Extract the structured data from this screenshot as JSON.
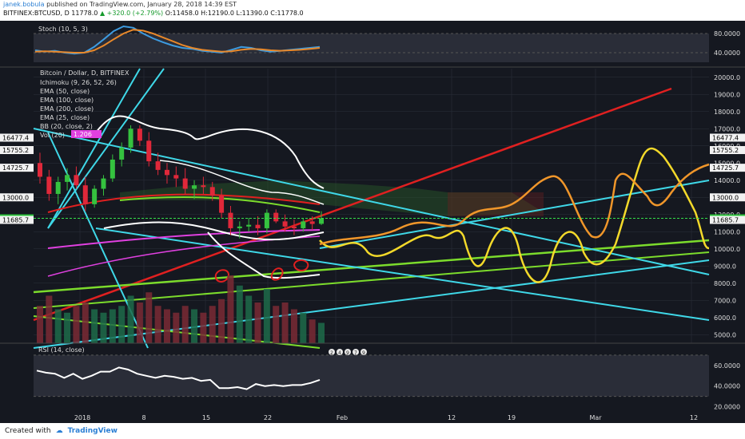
{
  "header": {
    "author": "janek.bobula",
    "published": "published on TradingView.com, January 28, 2018 14:39 EST",
    "symbol": "BITFINEX:BTCUSD, D",
    "last": "11778.0",
    "change": "▲ +320.0 (+2.79%)",
    "ohlc": "O:11458.0 H:12190.0 L:11390.0 C:11778.0"
  },
  "footer": {
    "created_with": "Created with",
    "brand": "TradingView"
  },
  "colors": {
    "bg": "#151820",
    "grid": "#2a2f3a",
    "stoch_k": "#3d9be0",
    "stoch_d": "#e8882a",
    "rsi": "#ffffff",
    "cyan": "#3fd8e8",
    "red": "#e02020",
    "green": "#7cdc2c",
    "yellow": "#f3d92a",
    "orange": "#f0962a",
    "magenta": "#e040e0"
  },
  "chart_data": [
    {
      "type": "line",
      "pane": "stoch",
      "title": "Stoch (10, 5, 3)",
      "ylim": [
        20,
        100
      ],
      "yticks": [
        "80.0000",
        "40.0000"
      ],
      "x": [
        0,
        1,
        2,
        3,
        4,
        5,
        6,
        7,
        8,
        9,
        10,
        11,
        12,
        13,
        14,
        15,
        16,
        17,
        18,
        19,
        20,
        21,
        22,
        23,
        24,
        25,
        26,
        27,
        28,
        29
      ],
      "series": [
        {
          "values": [
            45,
            42,
            44,
            40,
            38,
            40,
            52,
            68,
            85,
            95,
            92,
            80,
            70,
            62,
            55,
            50,
            48,
            44,
            42,
            40,
            46,
            52,
            50,
            45,
            42,
            44,
            46,
            48,
            50,
            52
          ]
        },
        {
          "values": [
            42,
            43,
            42,
            41,
            40,
            40,
            45,
            55,
            68,
            80,
            88,
            86,
            80,
            72,
            64,
            56,
            50,
            46,
            44,
            42,
            43,
            46,
            48,
            47,
            45,
            44,
            45,
            46,
            48,
            50
          ]
        }
      ]
    },
    {
      "type": "candlestick",
      "pane": "price",
      "title": "Bitcoin / Dollar, D, BITFINEX",
      "ylim": [
        4500,
        20500
      ],
      "yticks": [
        "20000.0",
        "19000.0",
        "18000.0",
        "17000.0",
        "16000.0",
        "15000.0",
        "14000.0",
        "13000.0",
        "12000.0",
        "11000.0",
        "10000.0",
        "9000.0",
        "8000.0",
        "7000.0",
        "6000.0",
        "5000.0"
      ],
      "price_labels": [
        "16477.4",
        "15755.2",
        "14725.7",
        "13000.0",
        "11778.0",
        "11685.7"
      ],
      "xticks": [
        "2018",
        "8",
        "15",
        "22",
        "Feb",
        "12",
        "19",
        "Mar",
        "12"
      ],
      "legend": [
        "Ichimoku (9, 26, 52, 26)",
        "EMA (50, close)",
        "EMA (100, close)",
        "EMA (200, close)",
        "EMA (25, close)",
        "BB (20, close, 2)",
        "Vol (20)"
      ],
      "vol_label": "1.206",
      "last_price": 11778,
      "ohlc": [
        [
          15000,
          15600,
          13800,
          14200
        ],
        [
          14200,
          14600,
          12800,
          13200
        ],
        [
          13200,
          14200,
          12600,
          13900
        ],
        [
          13900,
          14700,
          13400,
          14300
        ],
        [
          14300,
          14800,
          13500,
          13700
        ],
        [
          13700,
          14200,
          12200,
          12600
        ],
        [
          12600,
          13700,
          12400,
          13500
        ],
        [
          13500,
          14300,
          13100,
          14100
        ],
        [
          14100,
          15500,
          13900,
          15200
        ],
        [
          15200,
          16200,
          14800,
          15900
        ],
        [
          15900,
          17200,
          15600,
          17000
        ],
        [
          17000,
          17200,
          16000,
          16300
        ],
        [
          16300,
          16800,
          14800,
          15100
        ],
        [
          15100,
          15600,
          14300,
          14600
        ],
        [
          14600,
          15000,
          13800,
          14300
        ],
        [
          14300,
          14800,
          13600,
          14100
        ],
        [
          14100,
          14700,
          13200,
          13500
        ],
        [
          13500,
          14000,
          12900,
          13700
        ],
        [
          13700,
          14200,
          13200,
          13600
        ],
        [
          13600,
          13900,
          12800,
          13100
        ],
        [
          13100,
          13500,
          11800,
          12100
        ],
        [
          12100,
          12500,
          10800,
          11200
        ],
        [
          11200,
          11600,
          10600,
          11300
        ],
        [
          11300,
          11800,
          11000,
          11400
        ],
        [
          11400,
          11900,
          10800,
          11200
        ],
        [
          11200,
          12300,
          10900,
          12100
        ],
        [
          12100,
          12300,
          11500,
          11600
        ],
        [
          11600,
          12000,
          11000,
          11300
        ],
        [
          11300,
          11700,
          10800,
          11200
        ],
        [
          11200,
          11800,
          11000,
          11600
        ],
        [
          11600,
          11900,
          11100,
          11450
        ],
        [
          11458,
          12190,
          11390,
          11778
        ]
      ],
      "volume": [
        0.55,
        0.7,
        0.5,
        0.45,
        0.55,
        0.6,
        0.5,
        0.45,
        0.5,
        0.55,
        0.7,
        0.6,
        0.75,
        0.55,
        0.5,
        0.45,
        0.55,
        0.5,
        0.45,
        0.55,
        0.65,
        1.0,
        0.85,
        0.7,
        0.6,
        0.8,
        0.55,
        0.6,
        0.5,
        0.45,
        0.35,
        0.3
      ],
      "event_markers": [
        "2",
        "4",
        "9",
        "7",
        "9"
      ]
    },
    {
      "type": "line",
      "pane": "rsi",
      "title": "RSI (14, close)",
      "ylim": [
        15,
        80
      ],
      "yticks": [
        "60.0000",
        "40.0000",
        "20.0000"
      ],
      "x": [
        0,
        1,
        2,
        3,
        4,
        5,
        6,
        7,
        8,
        9,
        10,
        11,
        12,
        13,
        14,
        15,
        16,
        17,
        18,
        19,
        20,
        21,
        22,
        23,
        24,
        25,
        26,
        27,
        28,
        29,
        30,
        31
      ],
      "series": [
        {
          "values": [
            55,
            53,
            52,
            48,
            52,
            47,
            50,
            54,
            54,
            58,
            56,
            52,
            50,
            48,
            50,
            49,
            47,
            48,
            45,
            46,
            38,
            38,
            39,
            37,
            42,
            40,
            41,
            40,
            41,
            41,
            43,
            46
          ]
        }
      ]
    }
  ]
}
